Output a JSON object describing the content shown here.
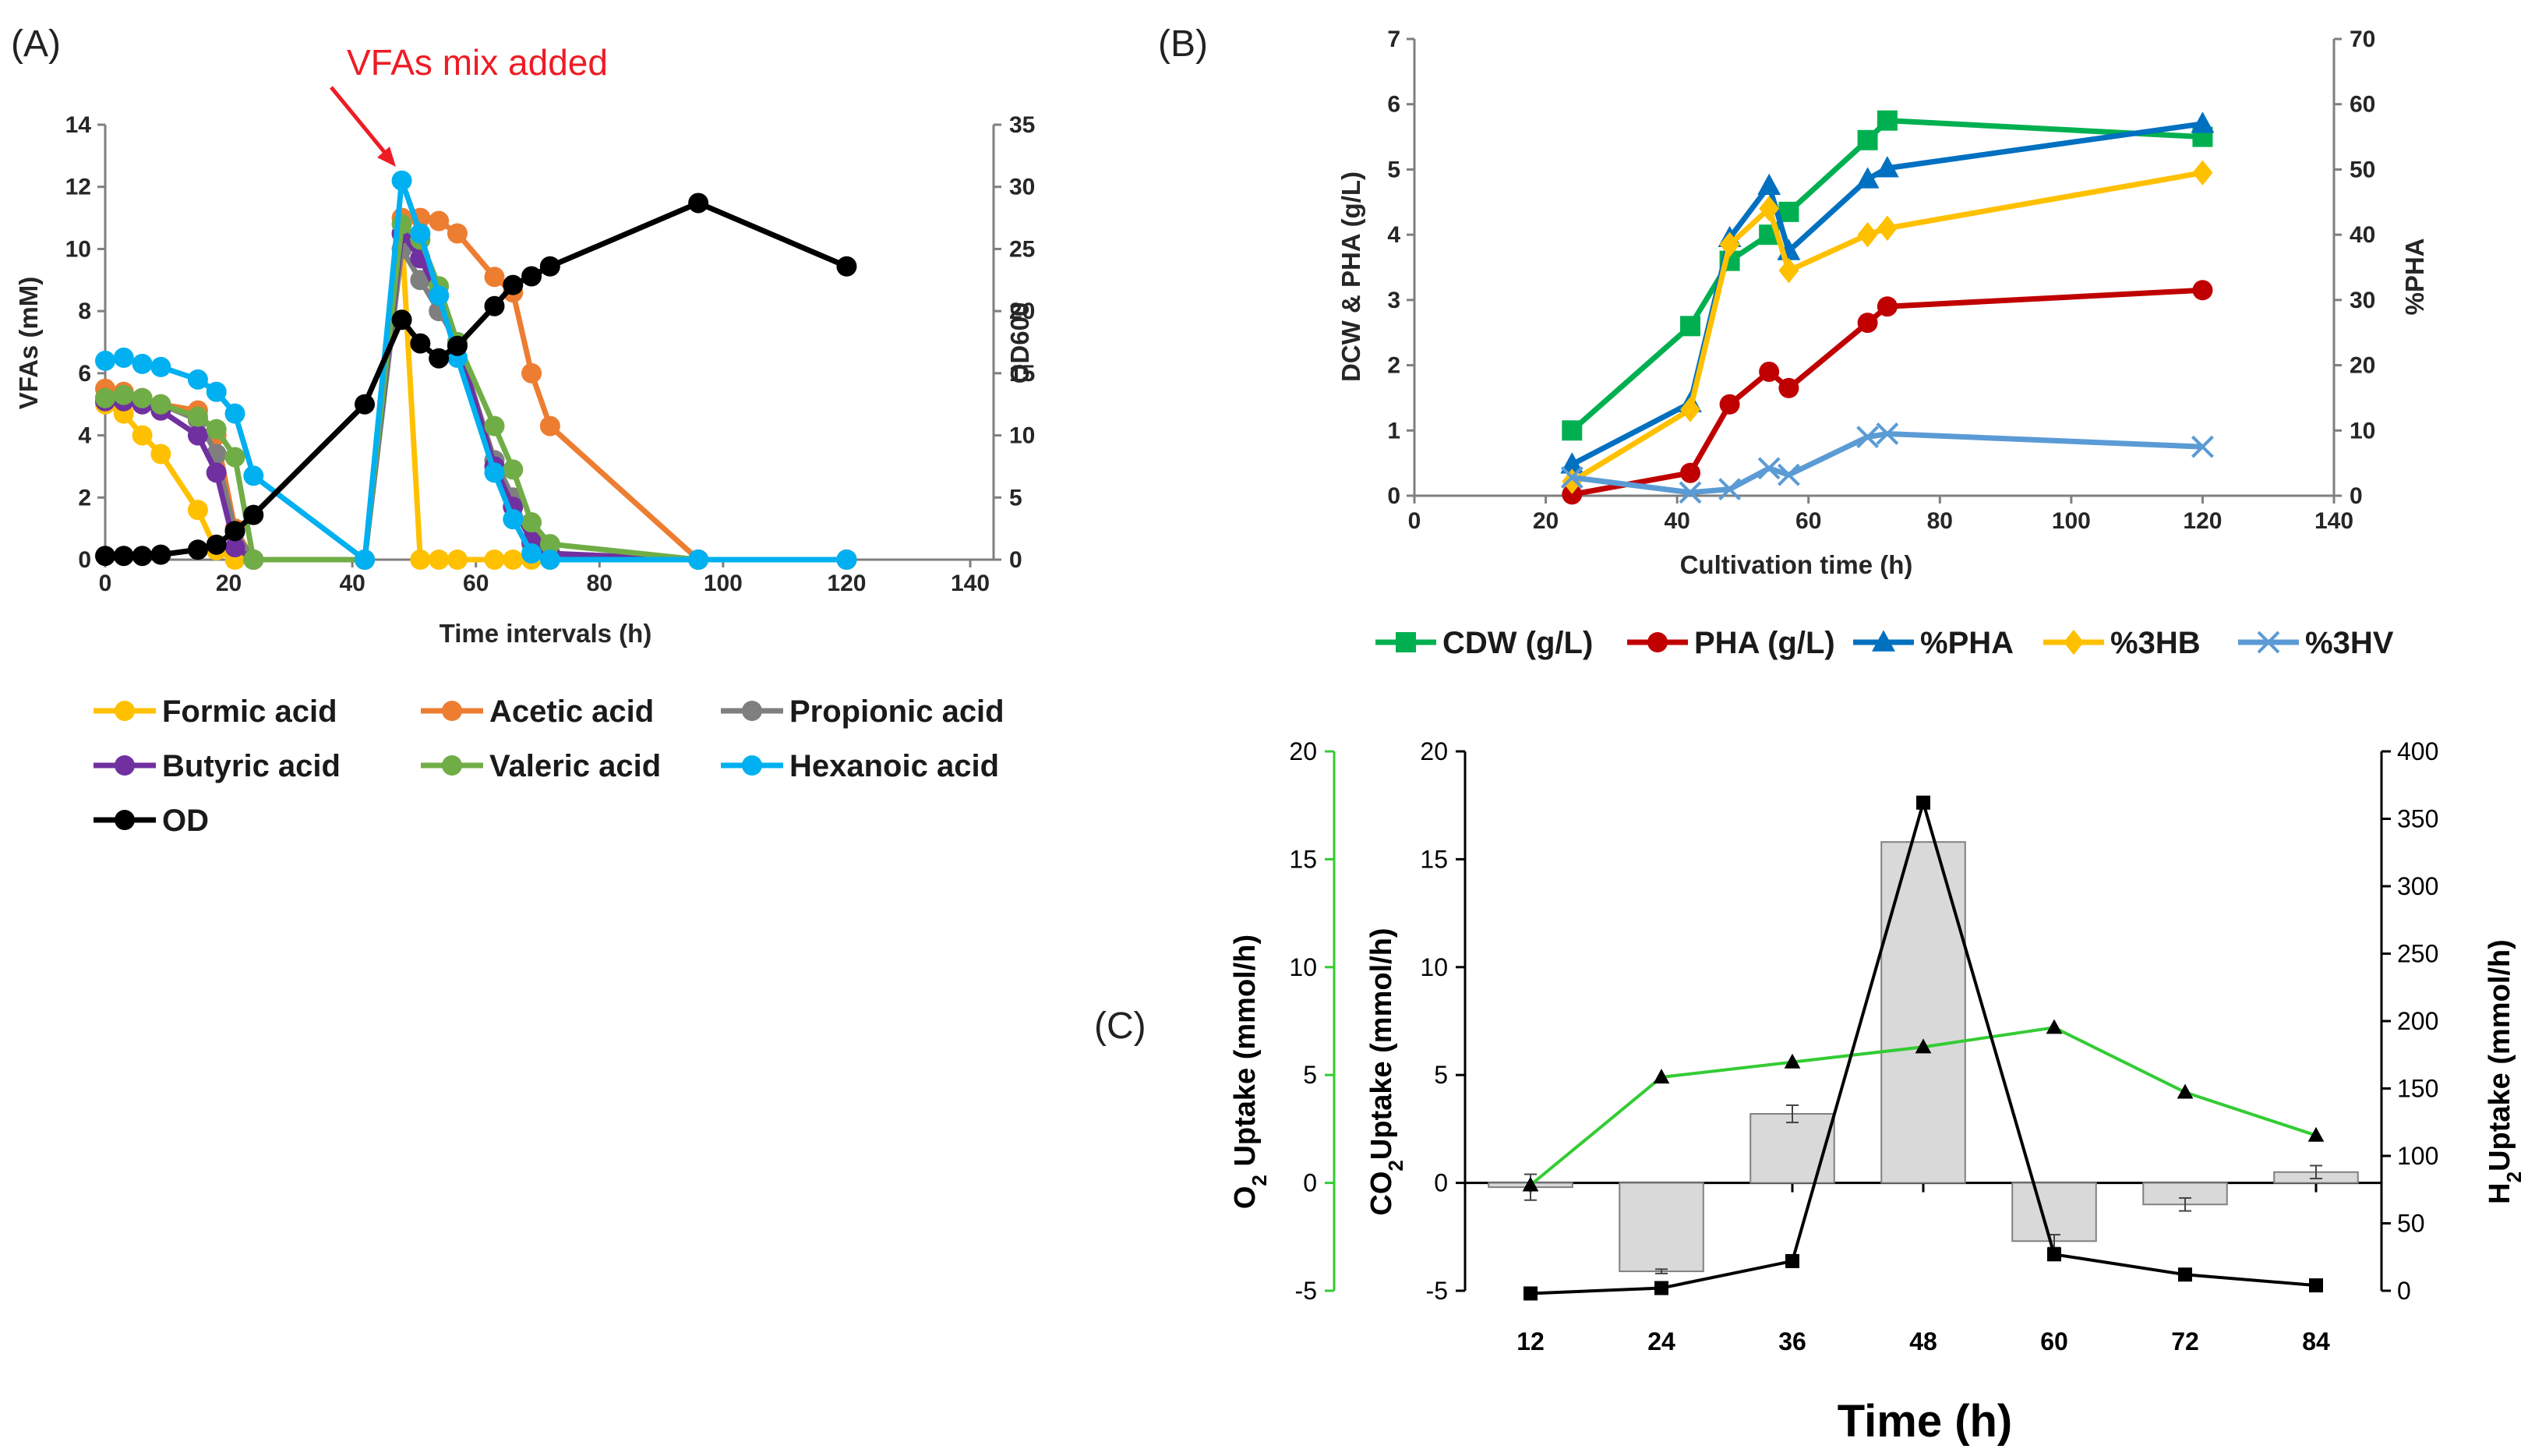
{
  "chart_data": [
    {
      "panel": "(A)",
      "type": "line",
      "xlabel": "Time intervals (h)",
      "ylabel": "VFAs (mM)",
      "y2label": "OD600",
      "xlim": [
        0,
        140
      ],
      "ylim": [
        0,
        14
      ],
      "y2lim": [
        0,
        35
      ],
      "xticks": [
        "0",
        "20",
        "40",
        "60",
        "80",
        "100",
        "120",
        "140"
      ],
      "yticks": [
        "0",
        "2",
        "4",
        "6",
        "8",
        "10",
        "12",
        "14"
      ],
      "y2ticks": [
        "0",
        "5",
        "10",
        "15",
        "20",
        "25",
        "30",
        "35"
      ],
      "annotation": "VFAs mix added",
      "annotation_color": "#ee1c25",
      "series": [
        {
          "name": "Formic acid",
          "color": "#ffc000",
          "axis": "left",
          "x": [
            0,
            3,
            6,
            9,
            15,
            18,
            21,
            24,
            42,
            48,
            51,
            54,
            57,
            63,
            66,
            69,
            72,
            96,
            120
          ],
          "values": [
            5.0,
            4.7,
            4.0,
            3.4,
            1.6,
            0.3,
            0,
            0,
            0,
            10.5,
            0,
            0,
            0,
            0,
            0,
            0,
            0,
            0,
            0
          ]
        },
        {
          "name": "Acetic acid",
          "color": "#ed7d31",
          "axis": "left",
          "x": [
            0,
            3,
            6,
            9,
            15,
            18,
            21,
            24,
            42,
            48,
            51,
            54,
            57,
            63,
            66,
            69,
            72,
            96,
            120
          ],
          "values": [
            5.5,
            5.4,
            5.2,
            5.0,
            4.8,
            4.0,
            1.0,
            0,
            0,
            11.0,
            11.0,
            10.9,
            10.5,
            9.1,
            8.6,
            6.0,
            4.3,
            0,
            0
          ]
        },
        {
          "name": "Propionic acid",
          "color": "#7f7f7f",
          "axis": "left",
          "x": [
            0,
            3,
            6,
            9,
            15,
            18,
            21,
            24,
            42,
            48,
            51,
            54,
            57,
            63,
            66,
            69,
            72,
            96,
            120
          ],
          "values": [
            5.2,
            5.2,
            5.1,
            5.0,
            4.5,
            3.4,
            0.9,
            0,
            0,
            10.0,
            9.0,
            8.0,
            7.0,
            3.2,
            2.0,
            0.5,
            0.1,
            0,
            0
          ]
        },
        {
          "name": "Butyric acid",
          "color": "#7030a0",
          "axis": "left",
          "x": [
            0,
            3,
            6,
            9,
            15,
            18,
            21,
            24,
            42,
            48,
            51,
            54,
            57,
            63,
            66,
            69,
            72,
            96,
            120
          ],
          "values": [
            5.1,
            5.1,
            5.0,
            4.8,
            4.0,
            2.8,
            0.4,
            0,
            0,
            10.5,
            9.7,
            8.5,
            7.0,
            3.0,
            1.7,
            0.6,
            0.2,
            0,
            0
          ]
        },
        {
          "name": "Valeric acid",
          "color": "#70ad47",
          "axis": "left",
          "x": [
            0,
            3,
            6,
            9,
            15,
            18,
            21,
            24,
            42,
            48,
            51,
            54,
            57,
            63,
            66,
            69,
            72,
            96,
            120
          ],
          "values": [
            5.2,
            5.3,
            5.2,
            5.0,
            4.6,
            4.2,
            3.3,
            0,
            0,
            10.8,
            10.3,
            8.8,
            7.0,
            4.3,
            2.9,
            1.2,
            0.5,
            0,
            0
          ]
        },
        {
          "name": "Hexanoic acid",
          "color": "#00b0f0",
          "axis": "left",
          "x": [
            0,
            3,
            6,
            9,
            15,
            18,
            21,
            24,
            42,
            48,
            51,
            54,
            57,
            63,
            66,
            69,
            72,
            96,
            120
          ],
          "values": [
            6.4,
            6.5,
            6.3,
            6.2,
            5.8,
            5.4,
            4.7,
            2.7,
            0,
            12.2,
            10.5,
            8.5,
            6.5,
            2.8,
            1.3,
            0.2,
            0,
            0,
            0
          ]
        },
        {
          "name": "OD",
          "color": "#000000",
          "axis": "right",
          "x": [
            0,
            3,
            6,
            9,
            15,
            18,
            21,
            24,
            42,
            48,
            51,
            54,
            57,
            63,
            66,
            69,
            72,
            96,
            120
          ],
          "values": [
            0.3,
            0.3,
            0.3,
            0.4,
            0.8,
            1.2,
            2.3,
            3.6,
            12.5,
            19.3,
            17.4,
            16.2,
            17.2,
            20.4,
            22.1,
            22.8,
            23.6,
            28.7,
            23.6
          ]
        }
      ]
    },
    {
      "panel": "(B)",
      "type": "line",
      "xlabel": "Cultivation time (h)",
      "ylabel": "DCW & PHA (g/L)",
      "y2label": "%PHA",
      "xlim": [
        0,
        140
      ],
      "ylim": [
        0,
        7
      ],
      "y2lim": [
        0,
        70
      ],
      "xticks": [
        "0",
        "20",
        "40",
        "60",
        "80",
        "100",
        "120",
        "140"
      ],
      "yticks": [
        "0",
        "1",
        "2",
        "3",
        "4",
        "5",
        "6",
        "7"
      ],
      "y2ticks": [
        "0",
        "10",
        "20",
        "30",
        "40",
        "50",
        "60",
        "70"
      ],
      "series": [
        {
          "name": "CDW (g/L)",
          "color": "#00b050",
          "marker": "square",
          "axis": "left",
          "x": [
            24,
            42,
            48,
            54,
            57,
            69,
            72,
            120
          ],
          "values": [
            1.0,
            2.6,
            3.6,
            4.0,
            4.35,
            5.45,
            5.75,
            5.5
          ]
        },
        {
          "name": "PHA (g/L)",
          "color": "#c00000",
          "marker": "circle",
          "axis": "left",
          "x": [
            24,
            42,
            48,
            54,
            57,
            69,
            72,
            120
          ],
          "values": [
            0.02,
            0.35,
            1.4,
            1.9,
            1.65,
            2.65,
            2.9,
            3.15
          ]
        },
        {
          "name": "%PHA",
          "color": "#0070c0",
          "marker": "triangle",
          "axis": "right",
          "x": [
            24,
            42,
            48,
            54,
            57,
            69,
            72,
            120
          ],
          "values": [
            4.8,
            14.2,
            39.5,
            47.5,
            37.5,
            48.5,
            50.2,
            57.0
          ]
        },
        {
          "name": "%3HB",
          "color": "#ffc000",
          "marker": "diamond",
          "axis": "right",
          "x": [
            24,
            42,
            48,
            54,
            57,
            69,
            72,
            120
          ],
          "values": [
            2.2,
            13.2,
            38.5,
            44.0,
            34.5,
            40.0,
            41.0,
            49.5
          ]
        },
        {
          "name": "%3HV",
          "color": "#5b9bd5",
          "marker": "x",
          "axis": "right",
          "x": [
            24,
            42,
            48,
            54,
            57,
            69,
            72,
            120
          ],
          "values": [
            2.8,
            0.5,
            1.0,
            4.2,
            3.2,
            9.0,
            9.5,
            7.5
          ]
        }
      ]
    },
    {
      "panel": "(C)",
      "type": "bar+line",
      "xlabel": "Time (h)",
      "categories": [
        "12",
        "24",
        "36",
        "48",
        "60",
        "72",
        "84"
      ],
      "o2_axis_label_main": "O",
      "o2_axis_label_sub": "2",
      "o2_axis_label_rest": " Uptake (mmol/h)",
      "co2_axis_label_main": "CO",
      "co2_axis_label_sub": "2",
      "co2_axis_label_rest": "Uptake (mmol/h)",
      "h2_axis_label_main": "H",
      "h2_axis_label_sub": "2",
      "h2_axis_label_rest": "Uptake (mmol/h)",
      "ylim": [
        -5,
        20
      ],
      "y2lim": [
        0,
        400
      ],
      "yticks": [
        "-5",
        "0",
        "5",
        "10",
        "15",
        "20"
      ],
      "y2ticks": [
        "0",
        "50",
        "100",
        "150",
        "200",
        "250",
        "300",
        "350",
        "400"
      ],
      "series": [
        {
          "name": "CO2 uptake",
          "type": "bar",
          "color": "#d9d9d9",
          "axis": "co2",
          "values": [
            -0.2,
            -4.1,
            3.2,
            15.8,
            -2.7,
            -1.0,
            0.5
          ],
          "errors": [
            0.6,
            0.1,
            0.4,
            0,
            0.3,
            0.3,
            0.3
          ]
        },
        {
          "name": "O2 uptake",
          "type": "line",
          "color": "#33cc33",
          "marker": "triangle",
          "axis": "o2",
          "values": [
            -0.1,
            4.9,
            5.6,
            6.3,
            7.2,
            4.2,
            2.2
          ]
        },
        {
          "name": "H2 uptake",
          "type": "line",
          "color": "#000000",
          "marker": "square",
          "axis": "h2",
          "values": [
            -2,
            2,
            22,
            362,
            27,
            12,
            4
          ]
        }
      ]
    }
  ]
}
